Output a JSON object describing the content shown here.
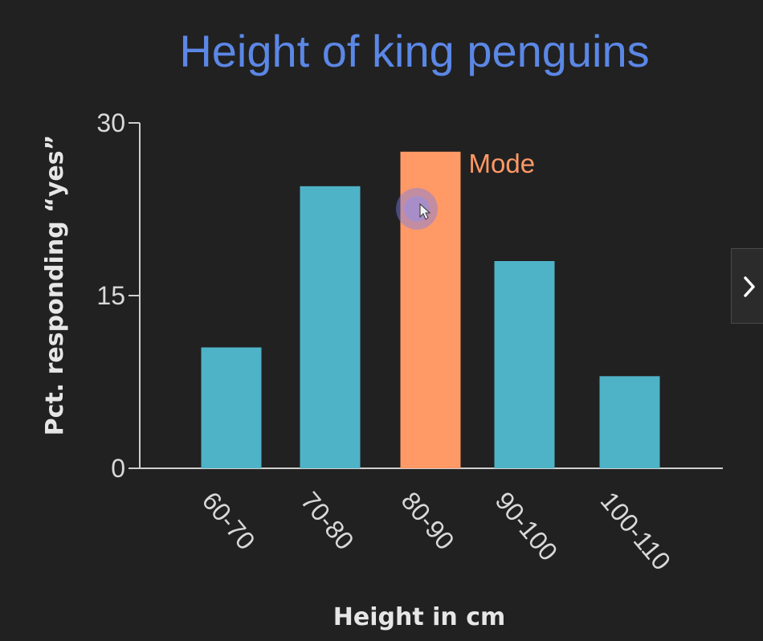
{
  "chart_data": {
    "type": "bar",
    "title": "Height of king penguins",
    "xlabel": "Height in cm",
    "ylabel": "Pct. responding “yes”",
    "categories": [
      "60-70",
      "70-80",
      "80-90",
      "90-100",
      "100-110"
    ],
    "values": [
      10.5,
      24.5,
      27.5,
      18,
      8
    ],
    "ylim": [
      0,
      30
    ],
    "yticks": [
      "0",
      "15",
      "30"
    ],
    "grid": false,
    "annotation": {
      "text": "Mode",
      "category": "80-90"
    },
    "colors": {
      "bar": "#4fb3c8",
      "highlight": "#ff9966",
      "title": "#5b87e6",
      "axis": "#cfcfcf",
      "background": "#212121"
    }
  },
  "controls": {
    "next_icon": "chevron-right-icon"
  }
}
